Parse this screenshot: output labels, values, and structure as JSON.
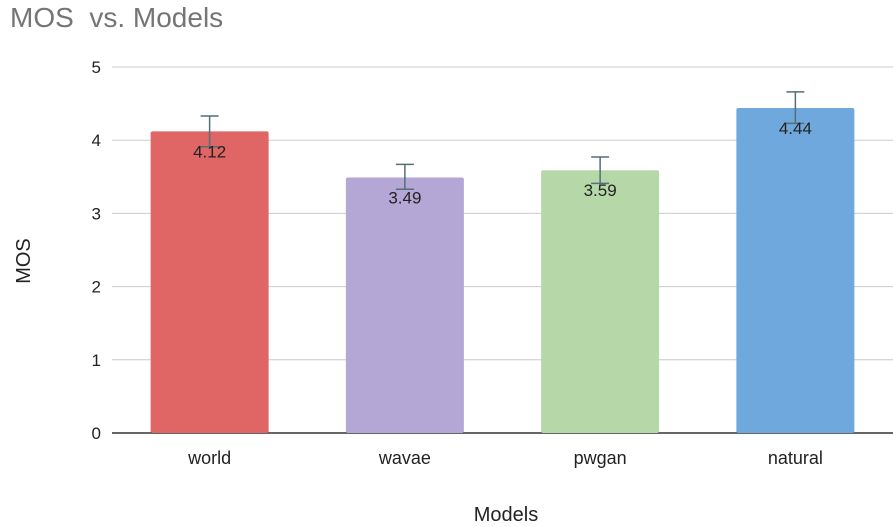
{
  "chart_data": {
    "type": "bar",
    "title": "MOS  vs. Models",
    "xlabel": "Models",
    "ylabel": "MOS",
    "categories": [
      "world",
      "wavae",
      "pwgan",
      "natural"
    ],
    "values": [
      4.12,
      3.49,
      3.59,
      4.44
    ],
    "data_labels": [
      "4.12",
      "3.49",
      "3.59",
      "4.44"
    ],
    "error_bars": [
      {
        "low": 3.91,
        "high": 4.33
      },
      {
        "low": 3.33,
        "high": 3.67
      },
      {
        "low": 3.41,
        "high": 3.77
      },
      {
        "low": 4.23,
        "high": 4.66
      }
    ],
    "colors": [
      "#e06666",
      "#b4a7d6",
      "#b6d7a8",
      "#6fa8dc"
    ],
    "error_bar_color": "#546e7a",
    "ylim": [
      0,
      5
    ],
    "yticks": [
      0,
      1,
      2,
      3,
      4,
      5
    ],
    "grid": true,
    "legend": "none"
  }
}
